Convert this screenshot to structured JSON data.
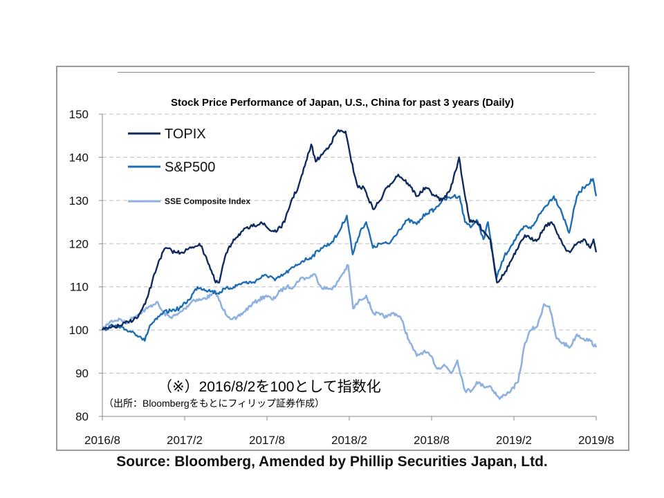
{
  "chart_data": {
    "type": "line",
    "title": "Stock Price Performance of Japan, U.S., China for past 3 years (Daily)",
    "x_tick_labels": [
      "2016/8",
      "2017/2",
      "2017/8",
      "2018/2",
      "2018/8",
      "2019/2",
      "2019/8"
    ],
    "y_ticks": [
      80,
      90,
      100,
      110,
      120,
      130,
      140,
      150
    ],
    "ylim": [
      80,
      150
    ],
    "xlim": [
      "2016-08-02",
      "2019-08-02"
    ],
    "grid": "horizontal",
    "legend_position": "top-left",
    "series": [
      {
        "name": "TOPIX",
        "color": "#0f2a5e",
        "points": [
          [
            "2016-08-02",
            100
          ],
          [
            "2016-08-20",
            100.5
          ],
          [
            "2016-09-10",
            101
          ],
          [
            "2016-10-01",
            102
          ],
          [
            "2016-10-20",
            103
          ],
          [
            "2016-11-05",
            106
          ],
          [
            "2016-11-20",
            111
          ],
          [
            "2016-12-05",
            116
          ],
          [
            "2016-12-20",
            119
          ],
          [
            "2017-01-10",
            118
          ],
          [
            "2017-01-25",
            118
          ],
          [
            "2017-02-15",
            119
          ],
          [
            "2017-03-05",
            120
          ],
          [
            "2017-03-20",
            117
          ],
          [
            "2017-04-10",
            111
          ],
          [
            "2017-04-18",
            111
          ],
          [
            "2017-05-01",
            117
          ],
          [
            "2017-05-20",
            121
          ],
          [
            "2017-06-10",
            123
          ],
          [
            "2017-07-01",
            124
          ],
          [
            "2017-07-20",
            125
          ],
          [
            "2017-08-10",
            123
          ],
          [
            "2017-08-25",
            123
          ],
          [
            "2017-09-10",
            125
          ],
          [
            "2017-09-25",
            130
          ],
          [
            "2017-10-10",
            133
          ],
          [
            "2017-10-25",
            138
          ],
          [
            "2017-11-08",
            143
          ],
          [
            "2017-11-18",
            139
          ],
          [
            "2017-12-05",
            141
          ],
          [
            "2017-12-20",
            143
          ],
          [
            "2018-01-05",
            146
          ],
          [
            "2018-01-23",
            146
          ],
          [
            "2018-02-05",
            139
          ],
          [
            "2018-02-20",
            133
          ],
          [
            "2018-03-05",
            133
          ],
          [
            "2018-03-25",
            128
          ],
          [
            "2018-04-10",
            130
          ],
          [
            "2018-04-25",
            133
          ],
          [
            "2018-05-20",
            136
          ],
          [
            "2018-06-10",
            134
          ],
          [
            "2018-07-01",
            131
          ],
          [
            "2018-07-20",
            133
          ],
          [
            "2018-08-10",
            131
          ],
          [
            "2018-08-25",
            130
          ],
          [
            "2018-09-10",
            132
          ],
          [
            "2018-09-25",
            137
          ],
          [
            "2018-10-02",
            140
          ],
          [
            "2018-10-12",
            133
          ],
          [
            "2018-10-26",
            125
          ],
          [
            "2018-11-10",
            125
          ],
          [
            "2018-11-25",
            123
          ],
          [
            "2018-12-10",
            121
          ],
          [
            "2018-12-25",
            111
          ],
          [
            "2019-01-10",
            113
          ],
          [
            "2019-01-25",
            116
          ],
          [
            "2019-02-10",
            119
          ],
          [
            "2019-02-25",
            122
          ],
          [
            "2019-03-10",
            121
          ],
          [
            "2019-03-25",
            121
          ],
          [
            "2019-04-10",
            124
          ],
          [
            "2019-04-25",
            125
          ],
          [
            "2019-05-10",
            122
          ],
          [
            "2019-05-25",
            119
          ],
          [
            "2019-06-05",
            118
          ],
          [
            "2019-06-20",
            120
          ],
          [
            "2019-07-05",
            121
          ],
          [
            "2019-07-20",
            119
          ],
          [
            "2019-07-27",
            121
          ],
          [
            "2019-08-02",
            118
          ]
        ]
      },
      {
        "name": "S&P500",
        "color": "#1c6db3",
        "points": [
          [
            "2016-08-02",
            100
          ],
          [
            "2016-08-25",
            101
          ],
          [
            "2016-09-10",
            100.5
          ],
          [
            "2016-09-25",
            100
          ],
          [
            "2016-10-10",
            99.5
          ],
          [
            "2016-10-25",
            98.5
          ],
          [
            "2016-11-04",
            97.5
          ],
          [
            "2016-11-15",
            101
          ],
          [
            "2016-12-01",
            102.5
          ],
          [
            "2016-12-15",
            104
          ],
          [
            "2016-12-31",
            104.5
          ],
          [
            "2017-01-20",
            105
          ],
          [
            "2017-02-10",
            107
          ],
          [
            "2017-03-01",
            110
          ],
          [
            "2017-03-15",
            109.5
          ],
          [
            "2017-04-01",
            109
          ],
          [
            "2017-04-15",
            108.5
          ],
          [
            "2017-05-01",
            109.5
          ],
          [
            "2017-05-20",
            110
          ],
          [
            "2017-06-10",
            111
          ],
          [
            "2017-07-01",
            111
          ],
          [
            "2017-07-25",
            112.5
          ],
          [
            "2017-08-10",
            112.5
          ],
          [
            "2017-08-20",
            111.5
          ],
          [
            "2017-09-10",
            113
          ],
          [
            "2017-09-30",
            114.5
          ],
          [
            "2017-10-20",
            116
          ],
          [
            "2017-11-10",
            117
          ],
          [
            "2017-11-30",
            119
          ],
          [
            "2017-12-20",
            120
          ],
          [
            "2018-01-05",
            122
          ],
          [
            "2018-01-26",
            126.5
          ],
          [
            "2018-02-08",
            117.5
          ],
          [
            "2018-02-25",
            123
          ],
          [
            "2018-03-10",
            125
          ],
          [
            "2018-03-25",
            119
          ],
          [
            "2018-04-10",
            120
          ],
          [
            "2018-04-30",
            120
          ],
          [
            "2018-05-20",
            123
          ],
          [
            "2018-06-10",
            125.5
          ],
          [
            "2018-06-30",
            124.5
          ],
          [
            "2018-07-20",
            127
          ],
          [
            "2018-08-10",
            128
          ],
          [
            "2018-08-25",
            130
          ],
          [
            "2018-09-20",
            131
          ],
          [
            "2018-10-03",
            131
          ],
          [
            "2018-10-15",
            125
          ],
          [
            "2018-10-30",
            124
          ],
          [
            "2018-11-10",
            125.5
          ],
          [
            "2018-11-25",
            121
          ],
          [
            "2018-12-05",
            125
          ],
          [
            "2018-12-15",
            118
          ],
          [
            "2018-12-24",
            112
          ],
          [
            "2019-01-10",
            117
          ],
          [
            "2019-01-25",
            119.5
          ],
          [
            "2019-02-10",
            122
          ],
          [
            "2019-02-25",
            124
          ],
          [
            "2019-03-10",
            123.5
          ],
          [
            "2019-03-25",
            126
          ],
          [
            "2019-04-10",
            128.5
          ],
          [
            "2019-04-30",
            131
          ],
          [
            "2019-05-15",
            128
          ],
          [
            "2019-06-03",
            122.5
          ],
          [
            "2019-06-20",
            131
          ],
          [
            "2019-07-05",
            133
          ],
          [
            "2019-07-26",
            135
          ],
          [
            "2019-08-02",
            131
          ]
        ]
      },
      {
        "name": "SSE Composite Index",
        "color": "#8eb1e0",
        "points": [
          [
            "2016-08-02",
            100
          ],
          [
            "2016-08-20",
            102
          ],
          [
            "2016-09-10",
            102.5
          ],
          [
            "2016-09-25",
            101.5
          ],
          [
            "2016-10-10",
            103
          ],
          [
            "2016-10-25",
            104
          ],
          [
            "2016-11-10",
            105
          ],
          [
            "2016-11-30",
            106.5
          ],
          [
            "2016-12-15",
            104
          ],
          [
            "2016-12-31",
            103
          ],
          [
            "2017-01-15",
            103.5
          ],
          [
            "2017-02-01",
            105
          ],
          [
            "2017-02-20",
            107
          ],
          [
            "2017-03-10",
            107
          ],
          [
            "2017-03-31",
            108
          ],
          [
            "2017-04-10",
            109
          ],
          [
            "2017-04-25",
            105
          ],
          [
            "2017-05-10",
            103
          ],
          [
            "2017-05-25",
            102.5
          ],
          [
            "2017-06-10",
            104
          ],
          [
            "2017-06-30",
            106
          ],
          [
            "2017-07-15",
            107
          ],
          [
            "2017-07-31",
            108
          ],
          [
            "2017-08-15",
            107
          ],
          [
            "2017-08-31",
            109
          ],
          [
            "2017-09-15",
            110
          ],
          [
            "2017-09-30",
            110
          ],
          [
            "2017-10-15",
            112
          ],
          [
            "2017-10-31",
            112
          ],
          [
            "2017-11-15",
            113
          ],
          [
            "2017-11-30",
            110
          ],
          [
            "2017-12-15",
            109.5
          ],
          [
            "2017-12-31",
            110
          ],
          [
            "2018-01-10",
            112
          ],
          [
            "2018-01-29",
            115
          ],
          [
            "2018-02-09",
            105
          ],
          [
            "2018-02-25",
            107
          ],
          [
            "2018-03-10",
            108
          ],
          [
            "2018-03-25",
            104
          ],
          [
            "2018-04-10",
            103.5
          ],
          [
            "2018-04-25",
            103
          ],
          [
            "2018-05-10",
            104
          ],
          [
            "2018-05-25",
            103
          ],
          [
            "2018-06-15",
            97
          ],
          [
            "2018-06-30",
            94
          ],
          [
            "2018-07-15",
            95
          ],
          [
            "2018-07-31",
            94
          ],
          [
            "2018-08-15",
            91
          ],
          [
            "2018-08-30",
            92
          ],
          [
            "2018-09-15",
            90
          ],
          [
            "2018-09-28",
            93
          ],
          [
            "2018-10-15",
            86
          ],
          [
            "2018-10-30",
            86
          ],
          [
            "2018-11-10",
            88
          ],
          [
            "2018-11-25",
            87
          ],
          [
            "2018-12-10",
            87
          ],
          [
            "2018-12-31",
            84
          ],
          [
            "2019-01-10",
            85
          ],
          [
            "2019-01-25",
            86
          ],
          [
            "2019-02-10",
            88
          ],
          [
            "2019-02-25",
            97
          ],
          [
            "2019-03-10",
            100
          ],
          [
            "2019-03-25",
            101
          ],
          [
            "2019-04-08",
            106
          ],
          [
            "2019-04-20",
            105.5
          ],
          [
            "2019-05-06",
            98
          ],
          [
            "2019-05-20",
            97
          ],
          [
            "2019-06-05",
            96
          ],
          [
            "2019-06-20",
            99
          ],
          [
            "2019-07-05",
            98
          ],
          [
            "2019-07-20",
            97.5
          ],
          [
            "2019-08-02",
            96
          ]
        ]
      }
    ]
  },
  "annotations": {
    "note1": "（※）2016/8/2を100として指数化",
    "note2": "（出所：Bloombergをもとにフィリップ証券作成）"
  },
  "source_text": "Source: Bloomberg, Amended by Phillip Securities Japan, Ltd."
}
